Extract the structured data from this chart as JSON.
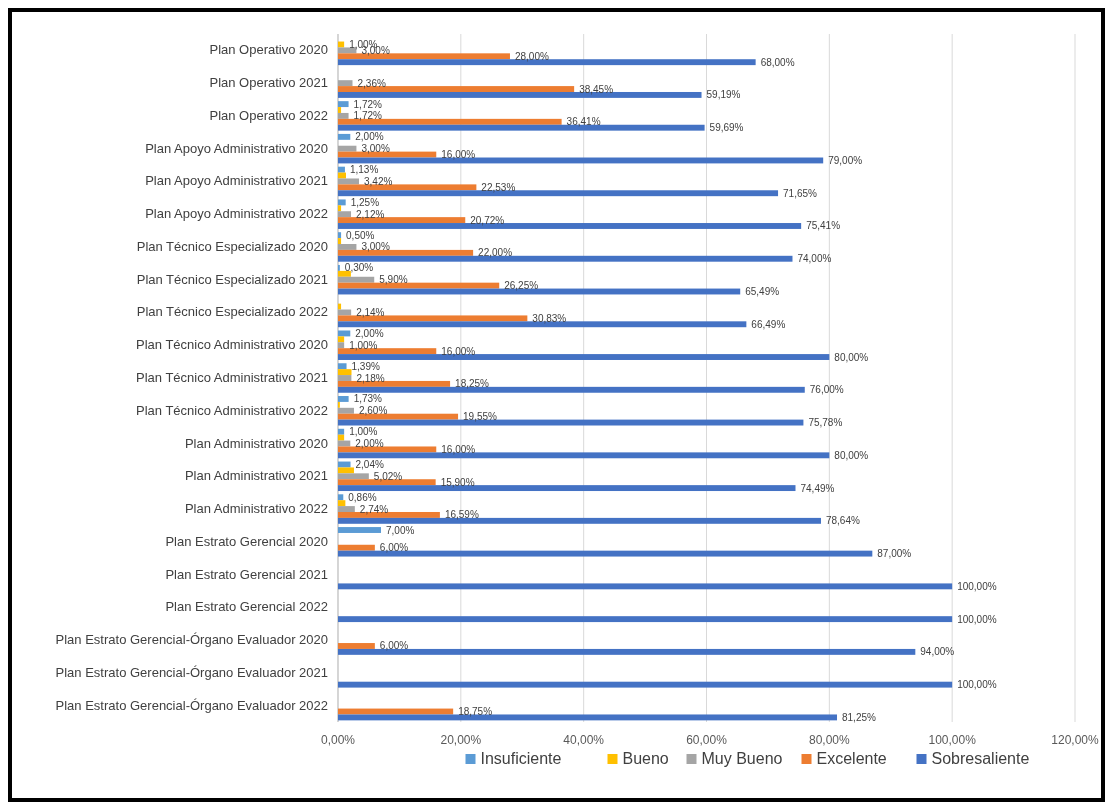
{
  "chart_data": {
    "type": "bar",
    "orientation": "horizontal",
    "categories": [
      "Plan Operativo 2020",
      "Plan Operativo 2021",
      "Plan Operativo 2022",
      "Plan Apoyo Administrativo 2020",
      "Plan Apoyo Administrativo 2021",
      "Plan Apoyo Administrativo 2022",
      "Plan Técnico Especializado 2020",
      "Plan Técnico Especializado 2021",
      "Plan Técnico Especializado 2022",
      "Plan Técnico Administrativo 2020",
      "Plan Técnico Administrativo 2021",
      "Plan Técnico Administrativo 2022",
      "Plan Administrativo 2020",
      "Plan Administrativo 2021",
      "Plan Administrativo 2022",
      "Plan Estrato Gerencial 2020",
      "Plan Estrato Gerencial 2021",
      "Plan Estrato Gerencial 2022",
      "Plan Estrato Gerencial-Órgano Evaluador 2020",
      "Plan Estrato Gerencial-Órgano Evaluador 2021",
      "Plan Estrato Gerencial-Órgano Evaluador 2022"
    ],
    "series": [
      {
        "name": "Insuficiente",
        "color": "#5b9bd5",
        "values": [
          null,
          null,
          1.72,
          2,
          1.13,
          1.25,
          0.5,
          0.3,
          null,
          2,
          1.39,
          1.73,
          1,
          2.04,
          0.86,
          7,
          null,
          null,
          null,
          null,
          null
        ],
        "value_labels": [
          null,
          null,
          "1,72%",
          "2,00%",
          "1,13%",
          "1,25%",
          "0,50%",
          "0,30%",
          null,
          "2,00%",
          "1,39%",
          "1,73%",
          "1,00%",
          "2,04%",
          "0,86%",
          "7,00%",
          null,
          null,
          null,
          null,
          null
        ]
      },
      {
        "name": "Bueno",
        "color": "#ffc000",
        "values": [
          1,
          null,
          0.5,
          null,
          1.3,
          0.5,
          0.5,
          2.1,
          0.5,
          1,
          2.2,
          0.3,
          1,
          2.6,
          1.2,
          null,
          null,
          null,
          null,
          null,
          null
        ],
        "value_labels": [
          "1,00%",
          null,
          null,
          null,
          null,
          null,
          null,
          null,
          null,
          null,
          null,
          null,
          null,
          null,
          null,
          null,
          null,
          null,
          null,
          null,
          null
        ]
      },
      {
        "name": "Muy Bueno",
        "color": "#a5a5a5",
        "values": [
          3,
          2.36,
          1.72,
          3,
          3.42,
          2.12,
          3,
          5.9,
          2.14,
          1,
          2.18,
          2.6,
          2,
          5.02,
          2.74,
          null,
          null,
          null,
          null,
          null,
          null
        ],
        "value_labels": [
          "3,00%",
          "2,36%",
          "1,72%",
          "3,00%",
          "3,42%",
          "2,12%",
          "3,00%",
          "5,90%",
          "2,14%",
          "1,00%",
          "2,18%",
          "2,60%",
          "2,00%",
          "5,02%",
          "2,74%",
          null,
          null,
          null,
          null,
          null,
          null
        ]
      },
      {
        "name": "Excelente",
        "color": "#ed7d31",
        "values": [
          28,
          38.45,
          36.41,
          16,
          22.53,
          20.72,
          22,
          26.25,
          30.83,
          16,
          18.25,
          19.55,
          16,
          15.9,
          16.59,
          6,
          null,
          null,
          6,
          null,
          18.75
        ],
        "value_labels": [
          "28,00%",
          "38,45%",
          "36,41%",
          "16,00%",
          "22,53%",
          "20,72%",
          "22,00%",
          "26,25%",
          "30,83%",
          "16,00%",
          "18,25%",
          "19,55%",
          "16,00%",
          "15,90%",
          "16,59%",
          "6,00%",
          null,
          null,
          "6,00%",
          null,
          "18,75%"
        ]
      },
      {
        "name": "Sobresaliente",
        "color": "#4472c4",
        "values": [
          68,
          59.19,
          59.69,
          79,
          71.65,
          75.41,
          74,
          65.49,
          66.49,
          80,
          76,
          75.78,
          80,
          74.49,
          78.64,
          87,
          100,
          100,
          94,
          100,
          81.25
        ],
        "value_labels": [
          "68,00%",
          "59,19%",
          "59,69%",
          "79,00%",
          "71,65%",
          "75,41%",
          "74,00%",
          "65,49%",
          "66,49%",
          "80,00%",
          "76,00%",
          "75,78%",
          "80,00%",
          "74,49%",
          "78,64%",
          "87,00%",
          "100,00%",
          "100,00%",
          "94,00%",
          "100,00%",
          "81,25%"
        ]
      }
    ],
    "xlim": [
      0,
      120
    ],
    "xticks": [
      {
        "value": 0,
        "label": "0,00%"
      },
      {
        "value": 20,
        "label": "20,00%"
      },
      {
        "value": 40,
        "label": "40,00%"
      },
      {
        "value": 60,
        "label": "60,00%"
      },
      {
        "value": 80,
        "label": "80,00%"
      },
      {
        "value": 100,
        "label": "100,00%"
      },
      {
        "value": 120,
        "label": "120,00%"
      }
    ],
    "grid": "x",
    "legend": "bottom"
  }
}
